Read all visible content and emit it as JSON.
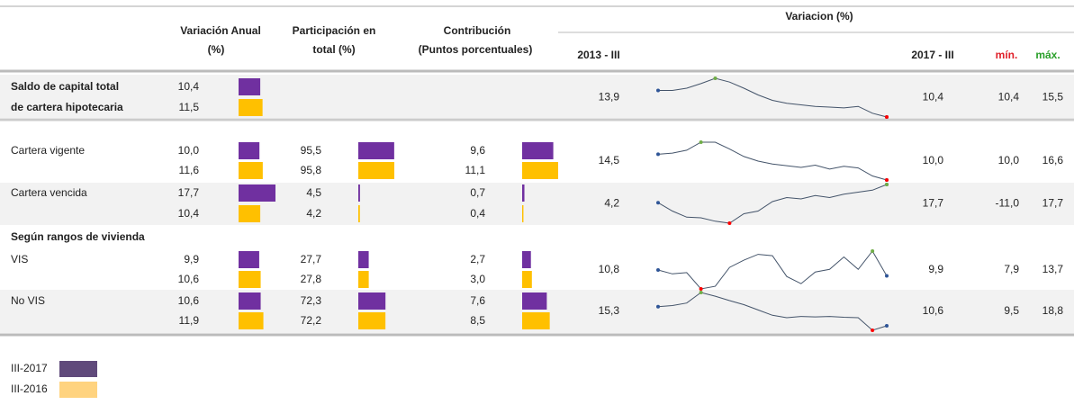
{
  "header": {
    "annual": [
      "Variación Anual",
      "(%)"
    ],
    "share": [
      "Participación en",
      "total (%)"
    ],
    "contrib": [
      "Contribución",
      "(Puntos porcentuales)"
    ],
    "variation": "Variacion (%)",
    "start": "2013 - III",
    "end": "2017 - III",
    "min": "mín.",
    "max": "máx."
  },
  "header_colors": {
    "min": "#e0202a",
    "max": "#2aa02a"
  },
  "bar_colors": [
    "#7030a0",
    "#ffc000"
  ],
  "spark_colors": {
    "line": "#44546a",
    "ends": "#2f5597",
    "max": "#70ad47",
    "min": "#ff0000"
  },
  "section_heading": "Según rangos de vivienda",
  "rows": [
    {
      "label": [
        "Saldo de capital total",
        "de cartera hipotecaria"
      ],
      "annual": {
        "values": [
          10.4,
          11.5
        ],
        "value_labels": [
          "10,4",
          "11,5"
        ]
      },
      "start": {
        "value": 13.9,
        "label": "13,9"
      },
      "end": {
        "value": 10.4,
        "label": "10,4"
      },
      "min": {
        "value": 10.4,
        "label": "10,4"
      },
      "max": {
        "value": 15.5,
        "label": "15,5"
      },
      "spark": [
        13.9,
        13.9,
        14.2,
        14.8,
        15.5,
        15.0,
        14.2,
        13.3,
        12.6,
        12.2,
        12.0,
        11.8,
        11.7,
        11.6,
        11.8,
        10.9,
        10.4
      ]
    },
    {
      "label": [
        "Cartera vigente"
      ],
      "annual": {
        "values": [
          10.0,
          11.6
        ],
        "value_labels": [
          "10,0",
          "11,6"
        ]
      },
      "share": {
        "values": [
          95.5,
          95.8
        ],
        "value_labels": [
          "95,5",
          "95,8"
        ]
      },
      "contrib": {
        "values": [
          9.6,
          11.1
        ],
        "value_labels": [
          "9,6",
          "11,1"
        ]
      },
      "start": {
        "value": 14.5,
        "label": "14,5"
      },
      "end": {
        "value": 10.0,
        "label": "10,0"
      },
      "min": {
        "value": 10.0,
        "label": "10,0"
      },
      "max": {
        "value": 16.6,
        "label": "16,6"
      },
      "spark": [
        14.5,
        14.7,
        15.2,
        16.6,
        16.6,
        15.4,
        14.1,
        13.3,
        12.8,
        12.5,
        12.2,
        12.6,
        11.9,
        12.4,
        12.1,
        10.7,
        10.0
      ]
    },
    {
      "label": [
        "Cartera vencida"
      ],
      "annual": {
        "values": [
          17.7,
          10.4
        ],
        "value_labels": [
          "17,7",
          "10,4"
        ]
      },
      "share": {
        "values": [
          4.5,
          4.2
        ],
        "value_labels": [
          "4,5",
          "4,2"
        ]
      },
      "contrib": {
        "values": [
          0.7,
          0.4
        ],
        "value_labels": [
          "0,7",
          "0,4"
        ]
      },
      "start": {
        "value": 4.2,
        "label": "4,2"
      },
      "end": {
        "value": 17.7,
        "label": "17,7"
      },
      "min": {
        "value": -11.0,
        "label": "-11,0"
      },
      "max": {
        "value": 17.7,
        "label": "17,7"
      },
      "spark": [
        4.2,
        -2.0,
        -6.5,
        -7.0,
        -9.5,
        -11.0,
        -4.0,
        -2.0,
        5.0,
        8.0,
        7.0,
        9.5,
        8.0,
        10.5,
        12.0,
        13.5,
        17.7
      ]
    },
    {
      "label": [
        "VIS"
      ],
      "annual": {
        "values": [
          9.9,
          10.6
        ],
        "value_labels": [
          "9,9",
          "10,6"
        ]
      },
      "share": {
        "values": [
          27.7,
          27.8
        ],
        "value_labels": [
          "27,7",
          "27,8"
        ]
      },
      "contrib": {
        "values": [
          2.7,
          3.0
        ],
        "value_labels": [
          "2,7",
          "3,0"
        ]
      },
      "start": {
        "value": 10.8,
        "label": "10,8"
      },
      "end": {
        "value": 9.9,
        "label": "9,9"
      },
      "min": {
        "value": 7.9,
        "label": "7,9"
      },
      "max": {
        "value": 13.7,
        "label": "13,7"
      },
      "spark": [
        10.8,
        10.2,
        10.4,
        7.9,
        8.3,
        11.2,
        12.3,
        13.2,
        13.0,
        9.8,
        8.7,
        10.5,
        10.9,
        12.8,
        10.9,
        13.7,
        9.9
      ]
    },
    {
      "label": [
        "No VIS"
      ],
      "annual": {
        "values": [
          10.6,
          11.9
        ],
        "value_labels": [
          "10,6",
          "11,9"
        ]
      },
      "share": {
        "values": [
          72.3,
          72.2
        ],
        "value_labels": [
          "72,3",
          "72,2"
        ]
      },
      "contrib": {
        "values": [
          7.6,
          8.5
        ],
        "value_labels": [
          "7,6",
          "8,5"
        ]
      },
      "start": {
        "value": 15.3,
        "label": "15,3"
      },
      "end": {
        "value": 10.6,
        "label": "10,6"
      },
      "min": {
        "value": 9.5,
        "label": "9,5"
      },
      "max": {
        "value": 18.8,
        "label": "18,8"
      },
      "spark": [
        15.3,
        15.6,
        16.2,
        18.8,
        17.9,
        16.8,
        15.8,
        14.5,
        13.2,
        12.6,
        12.9,
        12.8,
        12.9,
        12.7,
        12.6,
        9.5,
        10.6
      ]
    }
  ],
  "legend": [
    {
      "label": "III-2017",
      "color": "#604a7b"
    },
    {
      "label": "III-2016",
      "color": "#ffd37f"
    }
  ]
}
